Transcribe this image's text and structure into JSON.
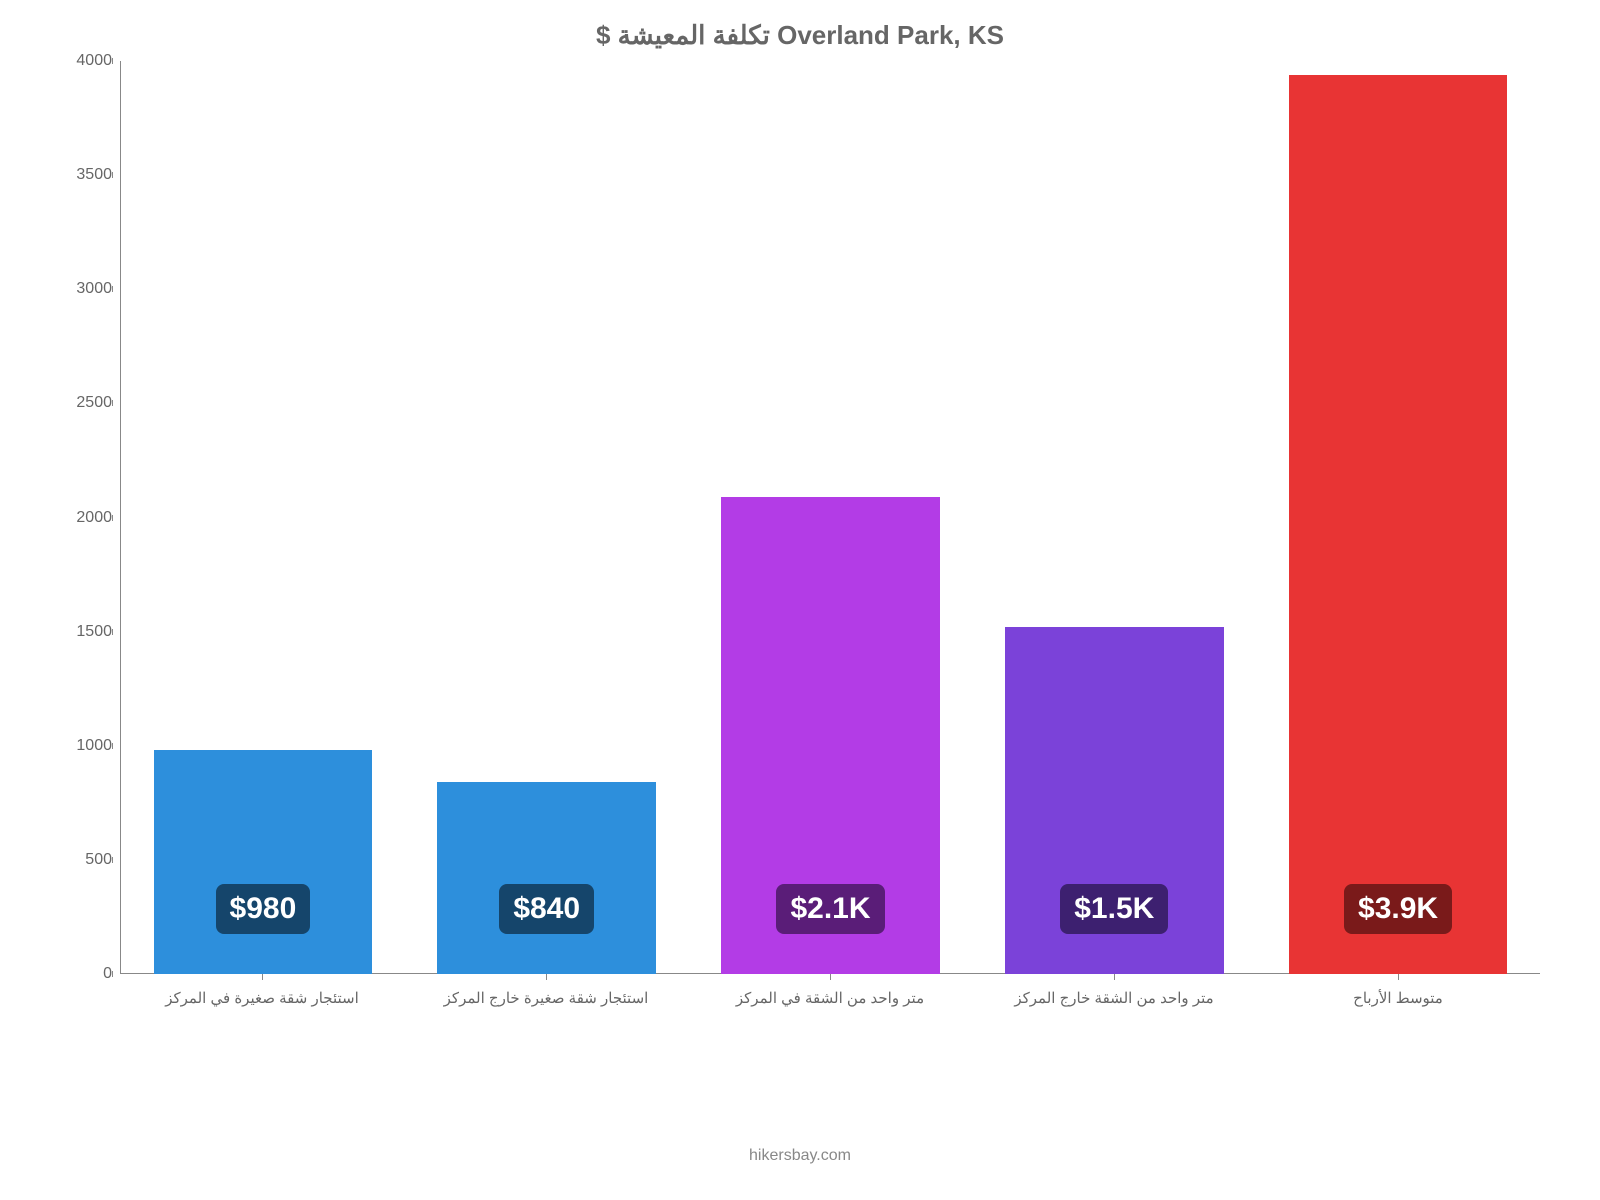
{
  "chart": {
    "type": "bar",
    "title": "Overland Park, KS تكلفة المعيشة $",
    "title_fontsize": 26,
    "title_color": "#666666",
    "background_color": "#ffffff",
    "ylim": [
      0,
      4000
    ],
    "ytick_step": 500,
    "yticks": [
      0,
      500,
      1000,
      1500,
      2000,
      2500,
      3000,
      3500,
      4000
    ],
    "axis_color": "#888888",
    "tick_label_color": "#666666",
    "tick_fontsize": 16,
    "x_label_fontsize": 15,
    "bar_width": 0.77,
    "categories": [
      "استئجار شقة صغيرة في المركز",
      "استئجار شقة صغيرة خارج المركز",
      "متر واحد من الشقة في المركز",
      "متر واحد من الشقة خارج المركز",
      "متوسط الأرباح"
    ],
    "values": [
      980,
      840,
      2090,
      1520,
      3940
    ],
    "bar_colors": [
      "#2d8fdc",
      "#2d8fdc",
      "#b33ce6",
      "#7b42d9",
      "#e83434"
    ],
    "value_labels": [
      "$980",
      "$840",
      "$2.1K",
      "$1.5K",
      "$3.9K"
    ],
    "label_bg_colors": [
      "#15456b",
      "#15456b",
      "#5a1d78",
      "#3d2070",
      "#7a1a1a"
    ],
    "label_text_color": "#ffffff",
    "label_fontsize": 30,
    "footer": "hikersbay.com",
    "footer_color": "#888888",
    "footer_fontsize": 16
  }
}
